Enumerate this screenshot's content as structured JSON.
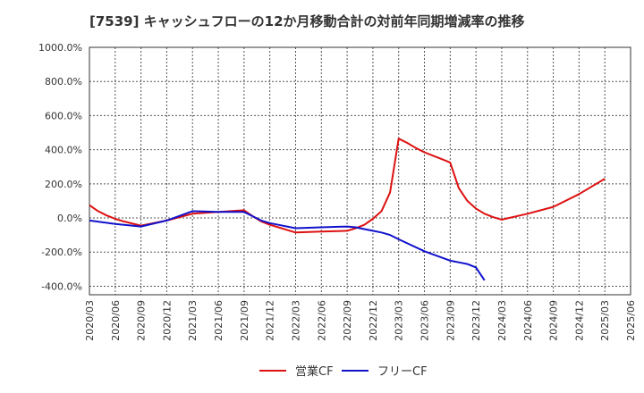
{
  "chart_data": {
    "type": "line",
    "title": "[7539]  キャッシュフローの12か月移動合計の対前年同期増減率の推移",
    "xlabel": "",
    "ylabel": "",
    "ylim": [
      -450,
      1000
    ],
    "y_ticks": [
      -400,
      -200,
      0,
      200,
      400,
      600,
      800,
      1000
    ],
    "y_tick_labels": [
      "-400.0%",
      "-200.0%",
      "0.0%",
      "200.0%",
      "400.0%",
      "600.0%",
      "800.0%",
      "1000.0%"
    ],
    "x_ticks": [
      "2020/03",
      "2020/06",
      "2020/09",
      "2020/12",
      "2021/03",
      "2021/06",
      "2021/09",
      "2021/12",
      "2022/03",
      "2022/06",
      "2022/09",
      "2022/12",
      "2023/03",
      "2023/06",
      "2023/09",
      "2023/12",
      "2024/03",
      "2024/06",
      "2024/09",
      "2024/12",
      "2025/03",
      "2025/06"
    ],
    "legend_position": "bottom-center",
    "series": [
      {
        "name": "営業CF",
        "color": "#dd1111",
        "points": [
          [
            "2020/03",
            75
          ],
          [
            "2020/04",
            40
          ],
          [
            "2020/05",
            15
          ],
          [
            "2020/06",
            -5
          ],
          [
            "2020/07",
            -20
          ],
          [
            "2020/09",
            -45
          ],
          [
            "2020/12",
            -15
          ],
          [
            "2021/03",
            25
          ],
          [
            "2021/06",
            35
          ],
          [
            "2021/09",
            45
          ],
          [
            "2021/10",
            10
          ],
          [
            "2021/11",
            -20
          ],
          [
            "2021/12",
            -40
          ],
          [
            "2022/01",
            -55
          ],
          [
            "2022/02",
            -70
          ],
          [
            "2022/03",
            -85
          ],
          [
            "2022/06",
            -80
          ],
          [
            "2022/09",
            -75
          ],
          [
            "2022/10",
            -60
          ],
          [
            "2022/11",
            -40
          ],
          [
            "2022/12",
            -5
          ],
          [
            "2023/01",
            40
          ],
          [
            "2023/02",
            150
          ],
          [
            "2023/03",
            465
          ],
          [
            "2023/04",
            440
          ],
          [
            "2023/05",
            410
          ],
          [
            "2023/06",
            385
          ],
          [
            "2023/07",
            365
          ],
          [
            "2023/08",
            345
          ],
          [
            "2023/09",
            325
          ],
          [
            "2023/10",
            175
          ],
          [
            "2023/11",
            100
          ],
          [
            "2023/12",
            55
          ],
          [
            "2024/01",
            25
          ],
          [
            "2024/02",
            5
          ],
          [
            "2024/03",
            -10
          ],
          [
            "2024/06",
            25
          ],
          [
            "2024/09",
            65
          ],
          [
            "2024/12",
            140
          ],
          [
            "2025/03",
            230
          ]
        ]
      },
      {
        "name": "フリーCF",
        "color": "#1111cc",
        "points": [
          [
            "2020/03",
            -15
          ],
          [
            "2020/06",
            -35
          ],
          [
            "2020/09",
            -50
          ],
          [
            "2020/12",
            -15
          ],
          [
            "2021/03",
            40
          ],
          [
            "2021/06",
            35
          ],
          [
            "2021/09",
            35
          ],
          [
            "2021/10",
            10
          ],
          [
            "2021/11",
            -15
          ],
          [
            "2021/12",
            -30
          ],
          [
            "2022/01",
            -40
          ],
          [
            "2022/02",
            -50
          ],
          [
            "2022/03",
            -60
          ],
          [
            "2022/06",
            -55
          ],
          [
            "2022/09",
            -50
          ],
          [
            "2022/10",
            -55
          ],
          [
            "2022/11",
            -65
          ],
          [
            "2022/12",
            -75
          ],
          [
            "2023/01",
            -85
          ],
          [
            "2023/02",
            -100
          ],
          [
            "2023/03",
            -125
          ],
          [
            "2023/06",
            -195
          ],
          [
            "2023/09",
            -250
          ],
          [
            "2023/10",
            -260
          ],
          [
            "2023/11",
            -270
          ],
          [
            "2023/12",
            -290
          ],
          [
            "2024/01",
            -365
          ]
        ]
      }
    ]
  }
}
